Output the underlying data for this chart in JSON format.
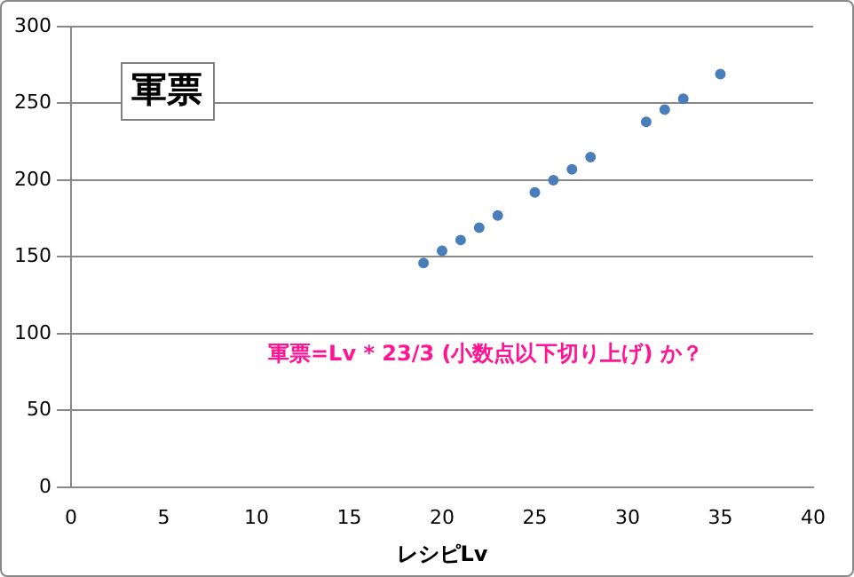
{
  "chart_data": {
    "type": "scatter",
    "title": "軍票",
    "xlabel": "レシピLv",
    "x": [
      19,
      20,
      21,
      22,
      23,
      25,
      26,
      27,
      28,
      31,
      32,
      33,
      35
    ],
    "series": [
      {
        "color": "#4a7ebb",
        "values": [
          146,
          154,
          161,
          169,
          177,
          192,
          200,
          207,
          215,
          238,
          246,
          253,
          269
        ]
      }
    ],
    "xlim": [
      0,
      40
    ],
    "xticks": [
      0,
      5,
      10,
      15,
      20,
      25,
      30,
      35,
      40
    ],
    "ylim": [
      0,
      300
    ],
    "yticks": [
      0,
      50,
      100,
      150,
      200,
      250,
      300
    ],
    "grid": "y",
    "legend": false,
    "marker": "circle",
    "annotations": [
      "軍票=Lv * 23/3 (小数点以下切り上げ) か？"
    ]
  }
}
